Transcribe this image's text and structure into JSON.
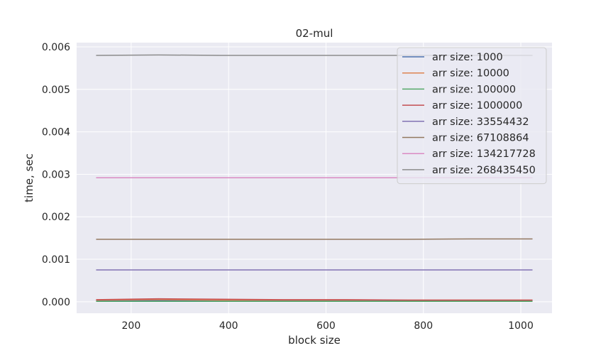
{
  "chart_data": {
    "type": "line",
    "title": "02-mul",
    "xlabel": "block size",
    "ylabel": "time, sec",
    "xlim": [
      88,
      1064
    ],
    "ylim": [
      -0.00027,
      0.0061
    ],
    "xticks": [
      200,
      400,
      600,
      800,
      1000
    ],
    "xtick_labels": [
      "200",
      "400",
      "600",
      "800",
      "1000"
    ],
    "yticks": [
      0,
      0.001,
      0.002,
      0.003,
      0.004,
      0.005,
      0.006
    ],
    "ytick_labels": [
      "0.000",
      "0.001",
      "0.002",
      "0.003",
      "0.004",
      "0.005",
      "0.006"
    ],
    "grid": true,
    "legend_position": "top-right",
    "x": [
      128,
      256,
      384,
      512,
      640,
      768,
      896,
      1024
    ],
    "series": [
      {
        "name": "arr size: 1000",
        "color": "#4c72b0",
        "values": [
          3e-05,
          3e-05,
          3e-05,
          3e-05,
          3e-05,
          3e-05,
          3e-05,
          3e-05
        ]
      },
      {
        "name": "arr size: 10000",
        "color": "#dd8452",
        "values": [
          4e-05,
          5e-05,
          4e-05,
          4e-05,
          4e-05,
          4e-05,
          4e-05,
          4e-05
        ]
      },
      {
        "name": "arr size: 100000",
        "color": "#55a868",
        "values": [
          1e-05,
          1e-05,
          1e-05,
          1e-05,
          1e-05,
          1e-05,
          1e-05,
          1e-05
        ]
      },
      {
        "name": "arr size: 1000000",
        "color": "#c44e52",
        "values": [
          5e-05,
          7e-05,
          6e-05,
          5e-05,
          5e-05,
          4e-05,
          4e-05,
          4e-05
        ]
      },
      {
        "name": "arr size: 33554432",
        "color": "#8172b3",
        "values": [
          0.00075,
          0.00075,
          0.00075,
          0.00075,
          0.00075,
          0.00075,
          0.00075,
          0.00075
        ]
      },
      {
        "name": "arr size: 67108864",
        "color": "#937860",
        "values": [
          0.00147,
          0.00147,
          0.00147,
          0.00147,
          0.00147,
          0.00147,
          0.00148,
          0.00148
        ]
      },
      {
        "name": "arr size: 134217728",
        "color": "#da8bc3",
        "values": [
          0.00292,
          0.00292,
          0.00292,
          0.00292,
          0.00292,
          0.00292,
          0.00292,
          0.00292
        ]
      },
      {
        "name": "arr size: 268435450",
        "color": "#8c8c8c",
        "values": [
          0.0058,
          0.00581,
          0.0058,
          0.0058,
          0.0058,
          0.0058,
          0.0058,
          0.0058
        ]
      }
    ]
  }
}
